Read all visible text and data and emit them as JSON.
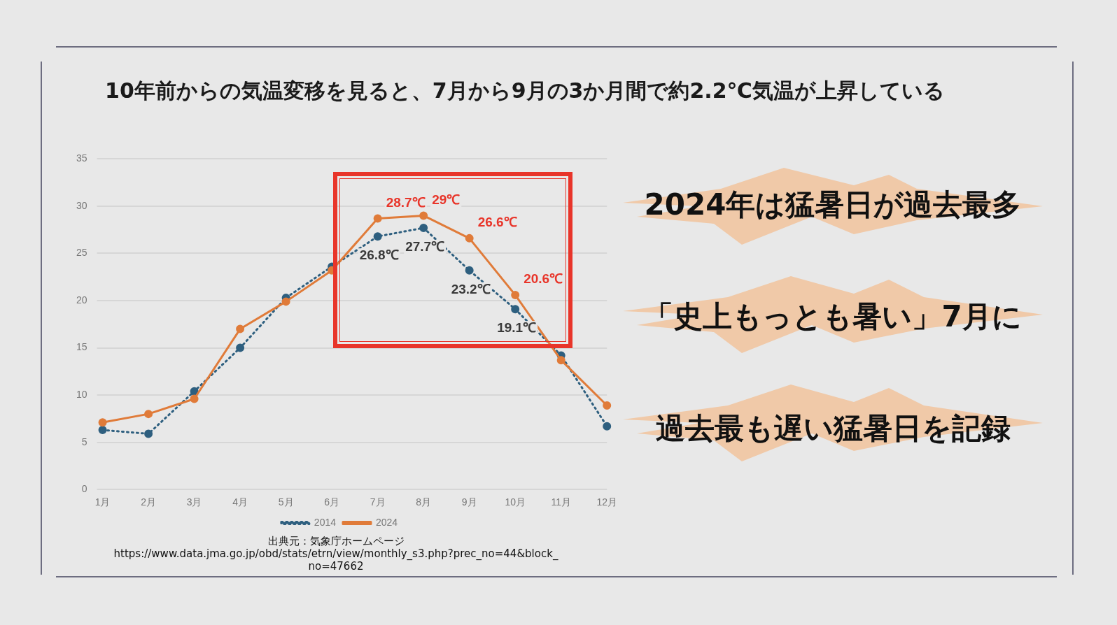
{
  "chart_data": {
    "type": "line",
    "title": "10年前からの気温変移を見ると、7月から9月の3か月間で約2.2℃気温が上昇している",
    "categories": [
      "1月",
      "2月",
      "3月",
      "4月",
      "5月",
      "6月",
      "7月",
      "8月",
      "9月",
      "10月",
      "11月",
      "12月"
    ],
    "series": [
      {
        "name": "2014",
        "color": "#2e5f7f",
        "line_style": "dotted",
        "values": [
          6.3,
          5.9,
          10.4,
          15.0,
          20.3,
          23.6,
          26.8,
          27.7,
          23.2,
          19.1,
          14.2,
          6.7
        ],
        "value_labels": [
          null,
          null,
          null,
          null,
          null,
          null,
          "26.8℃",
          "27.7℃",
          "23.2℃",
          "19.1℃",
          null,
          null
        ]
      },
      {
        "name": "2024",
        "color": "#e07b39",
        "line_style": "solid",
        "values": [
          7.1,
          8.0,
          9.6,
          17.0,
          19.9,
          23.2,
          28.7,
          29.0,
          26.6,
          20.6,
          13.7,
          8.9
        ],
        "value_labels": [
          null,
          null,
          null,
          null,
          null,
          null,
          "28.7℃",
          "29℃",
          "26.6℃",
          "20.6℃",
          null,
          null
        ]
      }
    ],
    "ylim": [
      0,
      35
    ],
    "yticks": [
      0,
      5,
      10,
      15,
      20,
      25,
      30,
      35
    ],
    "grid": "y",
    "legend": "bottom",
    "marker": "circle",
    "annotations": [
      "2024年は猛暑日が過去最多",
      "「史上もっとも暑い」7月に",
      "過去最も遅い猛暑日を記録",
      "出典元：気象庁ホームページ",
      "https://www.data.jma.go.jp/obd/stats/etrn/view/monthly_s3.php?prec_no=44&block_no=47662"
    ]
  }
}
